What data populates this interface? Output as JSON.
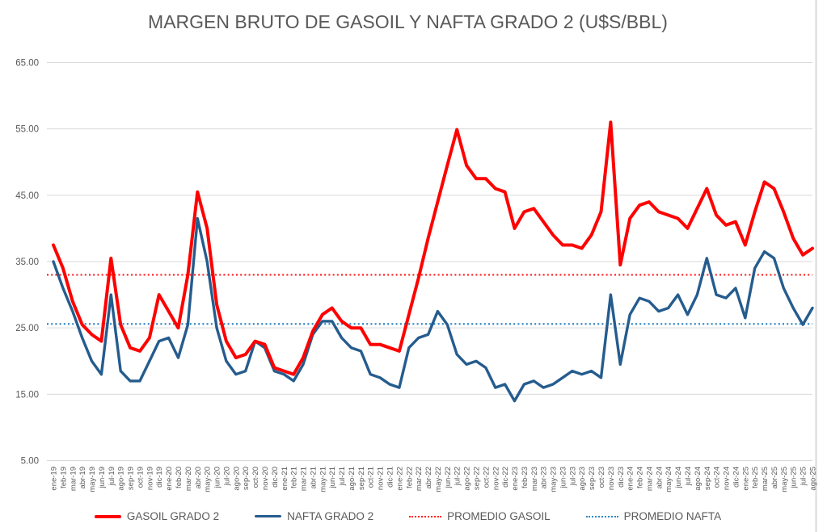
{
  "colors": {
    "gasoil": "#FF0000",
    "nafta": "#255C8E",
    "promedio_gasoil": "#FF1A1A",
    "promedio_nafta": "#2E86C5",
    "gridline": "#D9D9D9",
    "border": "#D9D9D9",
    "text": "#595959",
    "axis_text": "#595959"
  },
  "legend": [
    {
      "label": "GASOIL GRADO 2"
    },
    {
      "label": "NAFTA GRADO 2"
    },
    {
      "label": "PROMEDIO GASOIL"
    },
    {
      "label": "PROMEDIO NAFTA"
    }
  ],
  "chart_data": {
    "type": "line",
    "title": "MARGEN BRUTO DE GASOIL Y NAFTA GRADO 2 (U$S/BBL)",
    "xlabel": "",
    "ylabel": "",
    "ylim": [
      5,
      65
    ],
    "yticks": [
      5,
      15,
      25,
      35,
      45,
      55,
      65
    ],
    "ytick_labels": [
      "5.00",
      "15.00",
      "25.00",
      "35.00",
      "45.00",
      "55.00",
      "65.00"
    ],
    "grid": true,
    "legend_position": "bottom",
    "categories": [
      "ene-19",
      "feb-19",
      "mar-19",
      "abr-19",
      "may-19",
      "jun-19",
      "jul-19",
      "ago-19",
      "sep-19",
      "oct-19",
      "nov-19",
      "dic-19",
      "ene-20",
      "feb-20",
      "mar-20",
      "abr-20",
      "may-20",
      "jun-20",
      "jul-20",
      "ago-20",
      "sep-20",
      "oct-20",
      "nov-20",
      "dic-20",
      "ene-21",
      "feb-21",
      "mar-21",
      "abr-21",
      "may-21",
      "jun-21",
      "jul-21",
      "ago-21",
      "sep-21",
      "oct-21",
      "nov-21",
      "dic-21",
      "ene-22",
      "feb-22",
      "mar-22",
      "abr-22",
      "may-22",
      "jun-22",
      "jul-22",
      "ago-22",
      "sep-22",
      "oct-22",
      "nov-22",
      "dic-22",
      "ene-23",
      "feb-23",
      "mar-23",
      "abr-23",
      "may-23",
      "jun-23",
      "jul-23",
      "ago-23",
      "sep-23",
      "oct-23",
      "nov-23",
      "dic-23",
      "ene-24",
      "feb-24",
      "mar-24",
      "abr-24",
      "may-24",
      "jun-24",
      "jul-24",
      "ago-24",
      "sep-24",
      "oct-24",
      "nov-24",
      "dic-24",
      "ene-25",
      "feb-25",
      "mar-25",
      "abr-25",
      "may-25",
      "jun-25",
      "jul-25",
      "ago-25"
    ],
    "series": [
      {
        "name": "GASOIL GRADO 2",
        "style": "solid",
        "color": "#FF0000",
        "values": [
          37.5,
          34,
          29,
          25.5,
          24,
          23,
          35.5,
          25.5,
          22,
          21.5,
          23.5,
          30,
          27.5,
          25,
          33,
          45.5,
          40,
          28.5,
          23,
          20.5,
          21,
          23,
          22.5,
          19,
          18.5,
          18,
          20.5,
          24.5,
          27,
          28,
          26,
          25,
          25,
          22.5,
          22.5,
          22,
          21.5,
          27,
          32.5,
          38.5,
          44,
          49.5,
          54.9,
          49.5,
          47.5,
          47.5,
          46,
          45.5,
          40,
          42.5,
          43,
          41,
          39,
          37.5,
          37.5,
          37,
          39,
          42.5,
          56,
          34.5,
          41.5,
          43.5,
          44,
          42.5,
          42,
          41.5,
          40,
          43,
          46,
          42,
          40.5,
          41,
          37.5,
          42.5,
          47,
          46,
          42.5,
          38.5,
          36,
          37
        ]
      },
      {
        "name": "NAFTA GRADO 2",
        "style": "solid",
        "color": "#255C8E",
        "values": [
          35,
          31,
          27.5,
          23.5,
          20,
          18,
          30,
          18.5,
          17,
          17,
          20,
          23,
          23.5,
          20.5,
          25.5,
          41.5,
          35,
          25,
          20,
          18,
          18.5,
          23,
          22,
          18.5,
          18,
          17,
          19.5,
          24,
          26,
          26,
          23.5,
          22,
          21.5,
          18,
          17.5,
          16.5,
          16,
          22,
          23.5,
          24,
          27.5,
          25.5,
          21,
          19.5,
          20,
          19,
          16,
          16.5,
          14,
          16.5,
          17,
          16,
          16.5,
          17.5,
          18.5,
          18,
          18.5,
          17.5,
          30,
          19.5,
          27,
          29.5,
          29,
          27.5,
          28,
          30,
          27,
          30,
          35.5,
          30,
          29.5,
          31,
          26.5,
          34,
          36.5,
          35.5,
          31,
          28,
          25.5,
          28
        ]
      },
      {
        "name": "PROMEDIO GASOIL",
        "style": "dotted",
        "color": "#FF1A1A",
        "constant_value": 33.0
      },
      {
        "name": "PROMEDIO NAFTA",
        "style": "dotted",
        "color": "#2E86C5",
        "constant_value": 25.6
      }
    ]
  }
}
